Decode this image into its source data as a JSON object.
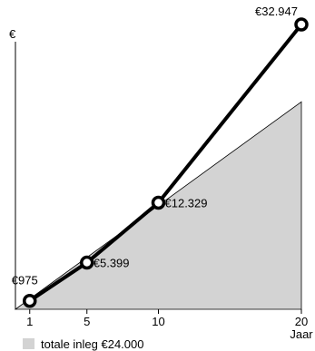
{
  "chart_data": {
    "type": "line",
    "x": [
      1,
      5,
      10,
      20
    ],
    "xlim": [
      0,
      20
    ],
    "ylim": [
      0,
      32947
    ],
    "y_axis_symbol": "€",
    "x_axis_label": "Jaar",
    "tick_labels": [
      "1",
      "5",
      "10",
      "20"
    ],
    "series": [
      {
        "values": [
          975,
          5399,
          12329,
          32947
        ],
        "point_labels": [
          "€975",
          "€5.399",
          "€12.329",
          "€32.947"
        ],
        "color": "#000000"
      }
    ],
    "area": {
      "x": [
        0,
        20
      ],
      "values": [
        0,
        24000
      ],
      "color": "#d3d3d3"
    },
    "legend": {
      "label": "totale inleg €24.000",
      "color": "#d3d3d3",
      "placement": "bottom-left"
    }
  }
}
